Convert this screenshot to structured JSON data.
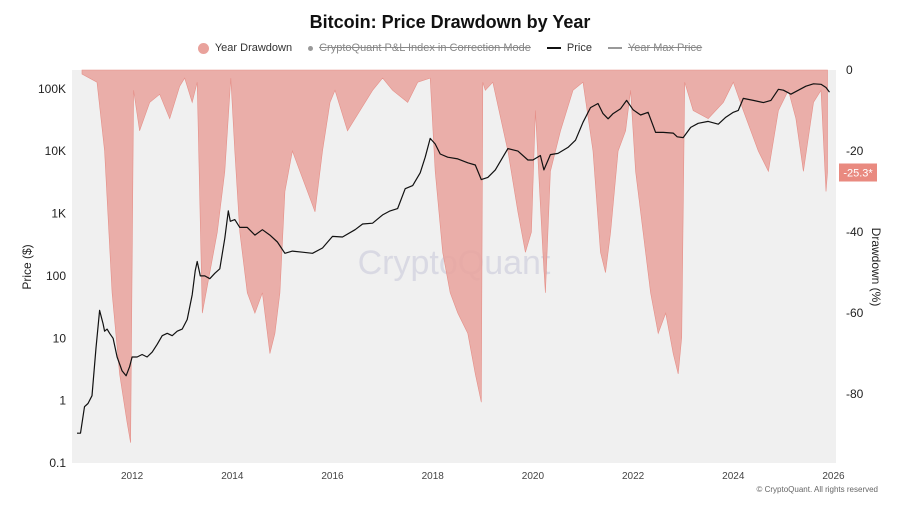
{
  "chart_data": {
    "type": "line",
    "title": "Bitcoin: Price Drawdown by Year",
    "ylabel": "Price ($)",
    "y2label": "Drawdown (%)",
    "yscale": "log",
    "ylim": [
      0.1,
      200000
    ],
    "y2lim": [
      -97,
      0
    ],
    "xlim": [
      2010.8,
      2026.05
    ],
    "x_ticks": [
      "2012",
      "2014",
      "2016",
      "2018",
      "2020",
      "2022",
      "2024",
      "2026"
    ],
    "y_ticks": [
      "0.1",
      "1",
      "10",
      "100",
      "1K",
      "10K",
      "100K"
    ],
    "y2_ticks": [
      "0",
      "-20",
      "-40",
      "-60",
      "-80"
    ],
    "grid": false,
    "legend": [
      {
        "label": "Year Drawdown",
        "visible": true,
        "color": "#e9a29c"
      },
      {
        "label": "CryptoQuant P&L Index in Correction Mode",
        "visible": false,
        "color": "#999999"
      },
      {
        "label": "Price",
        "visible": true,
        "color": "#111111"
      },
      {
        "label": "Year Max Price",
        "visible": false,
        "color": "#999999"
      }
    ],
    "current_drawdown_label": "-25.3*",
    "watermark": "CryptoQuant",
    "series": [
      {
        "name": "Price",
        "x": [
          2010.9,
          2010.97,
          2011.05,
          2011.12,
          2011.2,
          2011.28,
          2011.35,
          2011.42,
          2011.45,
          2011.5,
          2011.55,
          2011.62,
          2011.7,
          2011.8,
          2011.88,
          2011.95,
          2012.0,
          2012.1,
          2012.2,
          2012.3,
          2012.4,
          2012.5,
          2012.6,
          2012.7,
          2012.8,
          2012.9,
          2013.0,
          2013.1,
          2013.2,
          2013.26,
          2013.3,
          2013.36,
          2013.45,
          2013.55,
          2013.65,
          2013.75,
          2013.85,
          2013.92,
          2013.96,
          2014.05,
          2014.15,
          2014.3,
          2014.45,
          2014.6,
          2014.75,
          2014.9,
          2015.05,
          2015.2,
          2015.4,
          2015.6,
          2015.8,
          2016.0,
          2016.2,
          2016.45,
          2016.6,
          2016.8,
          2017.0,
          2017.15,
          2017.3,
          2017.45,
          2017.6,
          2017.75,
          2017.85,
          2017.95,
          2018.05,
          2018.15,
          2018.3,
          2018.5,
          2018.7,
          2018.85,
          2018.97,
          2019.1,
          2019.25,
          2019.4,
          2019.5,
          2019.7,
          2019.9,
          2020.0,
          2020.15,
          2020.22,
          2020.35,
          2020.5,
          2020.7,
          2020.85,
          2021.0,
          2021.15,
          2021.3,
          2021.4,
          2021.5,
          2021.6,
          2021.75,
          2021.87,
          2022.0,
          2022.15,
          2022.3,
          2022.45,
          2022.6,
          2022.8,
          2022.88,
          2023.0,
          2023.15,
          2023.3,
          2023.5,
          2023.7,
          2023.85,
          2024.0,
          2024.1,
          2024.2,
          2024.4,
          2024.6,
          2024.75,
          2024.9,
          2025.0,
          2025.15,
          2025.3,
          2025.45,
          2025.6,
          2025.75,
          2025.85,
          2025.92
        ],
        "values": [
          0.3,
          0.3,
          0.8,
          0.9,
          1.2,
          7,
          28,
          17,
          13,
          14,
          12,
          10,
          5,
          3,
          2.5,
          3.5,
          5,
          5,
          5.5,
          5,
          6,
          8,
          11,
          12,
          11,
          13,
          14,
          20,
          50,
          120,
          170,
          100,
          100,
          90,
          110,
          130,
          400,
          1100,
          750,
          800,
          600,
          600,
          450,
          550,
          450,
          350,
          230,
          250,
          240,
          230,
          280,
          430,
          420,
          550,
          680,
          700,
          950,
          1100,
          1200,
          2500,
          2800,
          4500,
          8000,
          16000,
          13000,
          9000,
          8000,
          7500,
          6500,
          6000,
          3500,
          3800,
          5000,
          8000,
          11000,
          10000,
          7200,
          7200,
          8500,
          5000,
          8800,
          9200,
          11500,
          15000,
          29000,
          50000,
          58000,
          40000,
          33000,
          40000,
          48000,
          65000,
          46000,
          38000,
          42000,
          20000,
          20000,
          19500,
          17000,
          16500,
          24000,
          28000,
          30000,
          27000,
          35000,
          42000,
          45000,
          70000,
          65000,
          60000,
          65000,
          98000,
          95000,
          82000,
          95000,
          110000,
          120000,
          118000,
          105000,
          88000
        ]
      },
      {
        "name": "Year Drawdown",
        "x": [
          2011.0,
          2011.3,
          2011.45,
          2011.6,
          2011.75,
          2011.9,
          2011.97,
          2012.03,
          2012.15,
          2012.35,
          2012.55,
          2012.75,
          2012.95,
          2013.05,
          2013.2,
          2013.3,
          2013.4,
          2013.55,
          2013.7,
          2013.85,
          2013.97,
          2014.05,
          2014.15,
          2014.3,
          2014.45,
          2014.6,
          2014.75,
          2014.85,
          2014.95,
          2015.05,
          2015.2,
          2015.35,
          2015.5,
          2015.65,
          2015.8,
          2015.95,
          2016.05,
          2016.3,
          2016.55,
          2016.8,
          2017.0,
          2017.2,
          2017.5,
          2017.7,
          2017.95,
          2018.05,
          2018.2,
          2018.35,
          2018.5,
          2018.7,
          2018.85,
          2018.97,
          2019.0,
          2019.05,
          2019.2,
          2019.5,
          2019.7,
          2019.85,
          2019.97,
          2020.05,
          2020.2,
          2020.25,
          2020.35,
          2020.55,
          2020.8,
          2021.0,
          2021.2,
          2021.35,
          2021.45,
          2021.55,
          2021.7,
          2021.85,
          2021.95,
          2022.05,
          2022.2,
          2022.35,
          2022.5,
          2022.65,
          2022.8,
          2022.9,
          2022.97,
          2023.03,
          2023.2,
          2023.5,
          2023.8,
          2024.0,
          2024.2,
          2024.35,
          2024.5,
          2024.7,
          2024.9,
          2025.1,
          2025.25,
          2025.4,
          2025.6,
          2025.75,
          2025.85,
          2025.88
        ],
        "values": [
          -1,
          -3,
          -20,
          -55,
          -75,
          -87,
          -92,
          -5,
          -15,
          -8,
          -6,
          -12,
          -4,
          -2,
          -8,
          -3,
          -60,
          -50,
          -40,
          -25,
          -2,
          -20,
          -40,
          -55,
          -60,
          -55,
          -70,
          -65,
          -55,
          -30,
          -20,
          -25,
          -30,
          -35,
          -20,
          -8,
          -5,
          -15,
          -10,
          -5,
          -2,
          -5,
          -8,
          -3,
          -2,
          -25,
          -45,
          -55,
          -60,
          -65,
          -75,
          -82,
          -3,
          -5,
          -3,
          -20,
          -35,
          -45,
          -40,
          -10,
          -45,
          -55,
          -25,
          -15,
          -5,
          -3,
          -20,
          -45,
          -50,
          -40,
          -20,
          -15,
          -5,
          -25,
          -40,
          -55,
          -65,
          -60,
          -70,
          -75,
          -66,
          -3,
          -10,
          -12,
          -8,
          -3,
          -10,
          -15,
          -20,
          -25,
          -10,
          -5,
          -12,
          -25,
          -8,
          -5,
          -30,
          -25.3
        ]
      }
    ]
  }
}
